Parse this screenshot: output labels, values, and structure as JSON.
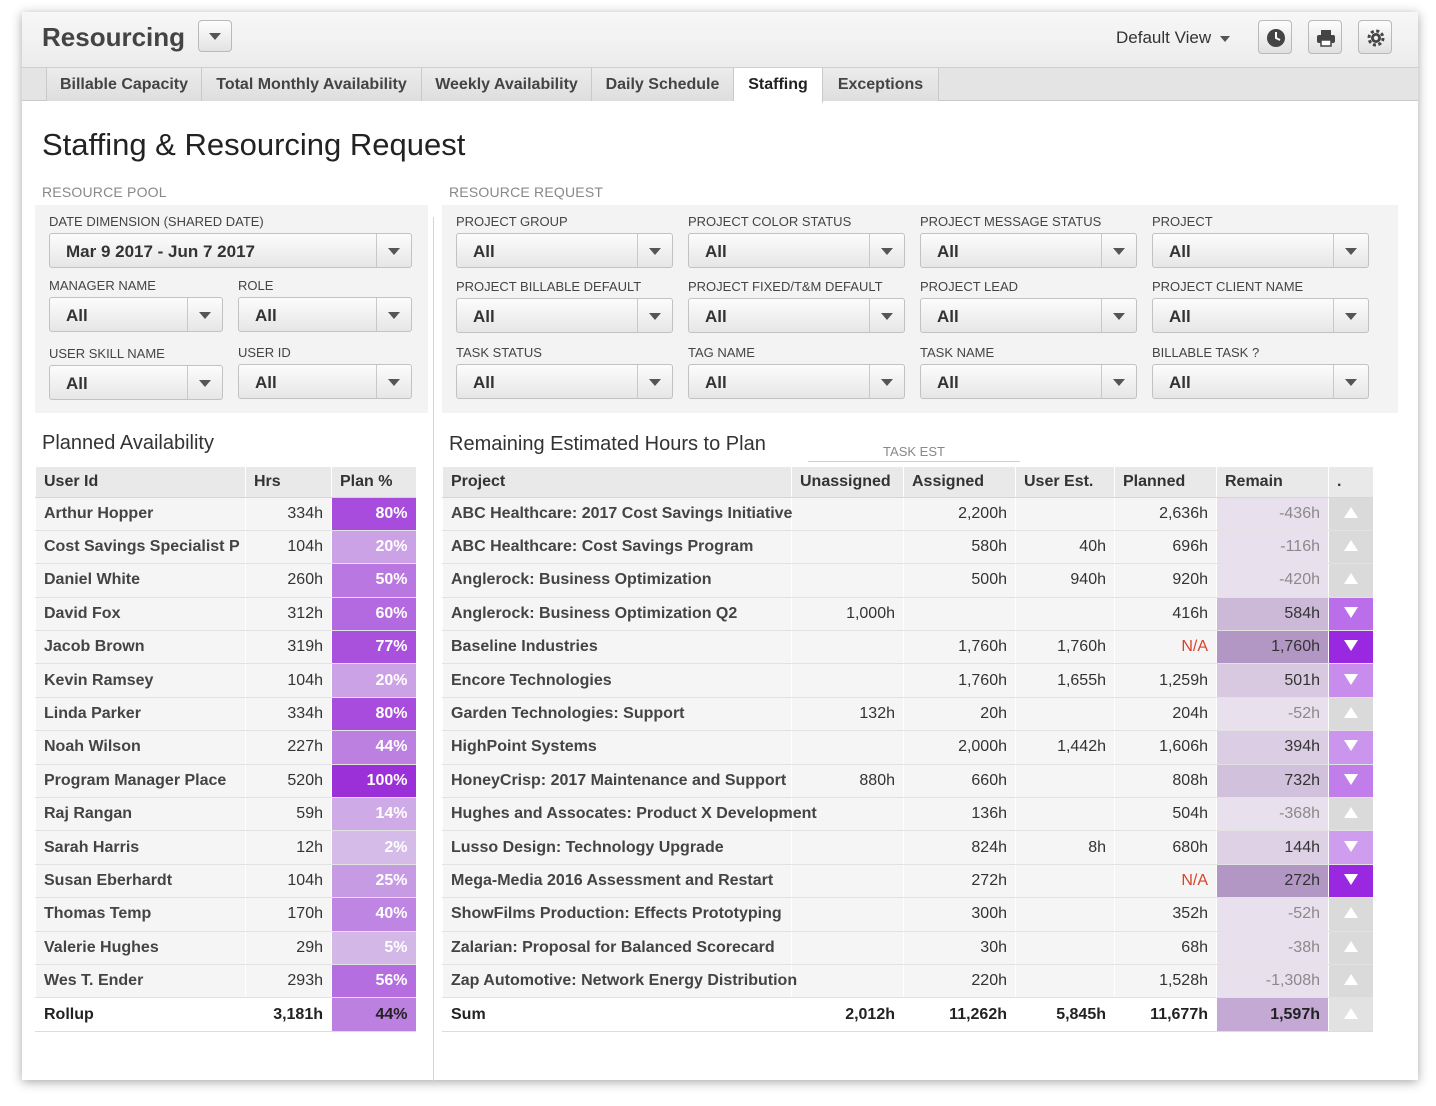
{
  "app": {
    "title": "Resourcing",
    "view": "Default View"
  },
  "tabs": [
    "Billable Capacity",
    "Total Monthly Availability",
    "Weekly Availability",
    "Daily Schedule",
    "Staffing",
    "Exceptions"
  ],
  "page_title": "Staffing & Resourcing Request",
  "resource_pool": {
    "label": "RESOURCE POOL",
    "filters": {
      "date": {
        "label": "DATE DIMENSION (SHARED DATE)",
        "value": "Mar 9 2017 - Jun 7 2017"
      },
      "manager": {
        "label": "MANAGER NAME",
        "value": "All"
      },
      "role": {
        "label": "ROLE",
        "value": "All"
      },
      "skill": {
        "label": "USER SKILL NAME",
        "value": "All"
      },
      "user_id": {
        "label": "USER ID",
        "value": "All"
      }
    }
  },
  "resource_request": {
    "label": "RESOURCE REQUEST",
    "filters": [
      {
        "label": "PROJECT GROUP",
        "value": "All"
      },
      {
        "label": "PROJECT COLOR STATUS",
        "value": "All"
      },
      {
        "label": "PROJECT MESSAGE STATUS",
        "value": "All"
      },
      {
        "label": "PROJECT",
        "value": "All"
      },
      {
        "label": "PROJECT BILLABLE DEFAULT",
        "value": "All"
      },
      {
        "label": "PROJECT FIXED/T&M DEFAULT",
        "value": "All"
      },
      {
        "label": "PROJECT LEAD",
        "value": "All"
      },
      {
        "label": "PROJECT CLIENT NAME",
        "value": "All"
      },
      {
        "label": "TASK STATUS",
        "value": "All"
      },
      {
        "label": "TAG NAME",
        "value": "All"
      },
      {
        "label": "TASK NAME",
        "value": "All"
      },
      {
        "label": "BILLABLE TASK ?",
        "value": "All"
      }
    ]
  },
  "availability": {
    "title": "Planned Availability",
    "headers": [
      "User Id",
      "Hrs",
      "Plan %"
    ],
    "rows": [
      {
        "user": "Arthur Hopper",
        "hrs": "334h",
        "plan": "80%",
        "level": 0.8
      },
      {
        "user": "Cost Savings Specialist P",
        "hrs": "104h",
        "plan": "20%",
        "level": 0.2
      },
      {
        "user": "Daniel White",
        "hrs": "260h",
        "plan": "50%",
        "level": 0.5
      },
      {
        "user": "David Fox",
        "hrs": "312h",
        "plan": "60%",
        "level": 0.6
      },
      {
        "user": "Jacob Brown",
        "hrs": "319h",
        "plan": "77%",
        "level": 0.77
      },
      {
        "user": "Kevin Ramsey",
        "hrs": "104h",
        "plan": "20%",
        "level": 0.2
      },
      {
        "user": "Linda Parker",
        "hrs": "334h",
        "plan": "80%",
        "level": 0.8
      },
      {
        "user": "Noah Wilson",
        "hrs": "227h",
        "plan": "44%",
        "level": 0.44
      },
      {
        "user": "Program Manager Place",
        "hrs": "520h",
        "plan": "100%",
        "level": 1.0
      },
      {
        "user": "Raj Rangan",
        "hrs": "59h",
        "plan": "14%",
        "level": 0.14
      },
      {
        "user": "Sarah Harris",
        "hrs": "12h",
        "plan": "2%",
        "level": 0.02
      },
      {
        "user": "Susan Eberhardt",
        "hrs": "104h",
        "plan": "25%",
        "level": 0.25
      },
      {
        "user": "Thomas Temp",
        "hrs": "170h",
        "plan": "40%",
        "level": 0.4
      },
      {
        "user": "Valerie Hughes",
        "hrs": "29h",
        "plan": "5%",
        "level": 0.05
      },
      {
        "user": "Wes T. Ender",
        "hrs": "293h",
        "plan": "56%",
        "level": 0.56
      }
    ],
    "total": {
      "user": "Rollup",
      "hrs": "3,181h",
      "plan": "44%",
      "level": 0.44
    }
  },
  "remaining": {
    "title": "Remaining Estimated Hours to Plan",
    "group_label": "TASK EST",
    "headers": [
      "Project",
      "Unassigned",
      "Assigned",
      "User Est.",
      "Planned",
      "Remain",
      "."
    ],
    "rows": [
      {
        "project": "ABC Healthcare: 2017 Cost Savings Initiative",
        "unassigned": "",
        "assigned": "2,200h",
        "user_est": "",
        "planned": "2,636h",
        "remain": "-436h",
        "dir": "up",
        "level": 0.05
      },
      {
        "project": "ABC Healthcare: Cost Savings Program",
        "unassigned": "",
        "assigned": "580h",
        "user_est": "40h",
        "planned": "696h",
        "remain": "-116h",
        "dir": "up",
        "level": 0.05
      },
      {
        "project": "Anglerock: Business Optimization",
        "unassigned": "",
        "assigned": "500h",
        "user_est": "940h",
        "planned": "920h",
        "remain": "-420h",
        "dir": "up",
        "level": 0.05
      },
      {
        "project": "Anglerock: Business Optimization Q2",
        "unassigned": "1,000h",
        "assigned": "",
        "user_est": "",
        "planned": "416h",
        "remain": "584h",
        "dir": "down",
        "level": 0.55
      },
      {
        "project": "Baseline Industries",
        "unassigned": "",
        "assigned": "1,760h",
        "user_est": "1,760h",
        "planned": "N/A",
        "remain": "1,760h",
        "dir": "down",
        "level": 1.0
      },
      {
        "project": "Encore Technologies",
        "unassigned": "",
        "assigned": "1,760h",
        "user_est": "1,655h",
        "planned": "1,259h",
        "remain": "501h",
        "dir": "down",
        "level": 0.35
      },
      {
        "project": "Garden Technologies: Support",
        "unassigned": "132h",
        "assigned": "20h",
        "user_est": "",
        "planned": "204h",
        "remain": "-52h",
        "dir": "up",
        "level": 0.05
      },
      {
        "project": "HighPoint Systems",
        "unassigned": "",
        "assigned": "2,000h",
        "user_est": "1,442h",
        "planned": "1,606h",
        "remain": "394h",
        "dir": "down",
        "level": 0.3
      },
      {
        "project": "HoneyCrisp: 2017 Maintenance and Support",
        "unassigned": "880h",
        "assigned": "660h",
        "user_est": "",
        "planned": "808h",
        "remain": "732h",
        "dir": "down",
        "level": 0.45
      },
      {
        "project": "Hughes and Assocates: Product X Development",
        "unassigned": "",
        "assigned": "136h",
        "user_est": "",
        "planned": "504h",
        "remain": "-368h",
        "dir": "up",
        "level": 0.05
      },
      {
        "project": "Lusso Design: Technology Upgrade",
        "unassigned": "",
        "assigned": "824h",
        "user_est": "8h",
        "planned": "680h",
        "remain": "144h",
        "dir": "down",
        "level": 0.25
      },
      {
        "project": "Mega-Media 2016 Assessment and Restart",
        "unassigned": "",
        "assigned": "272h",
        "user_est": "",
        "planned": "N/A",
        "remain": "272h",
        "dir": "down",
        "level": 1.0
      },
      {
        "project": "ShowFilms Production: Effects Prototyping",
        "unassigned": "",
        "assigned": "300h",
        "user_est": "",
        "planned": "352h",
        "remain": "-52h",
        "dir": "up",
        "level": 0.05
      },
      {
        "project": "Zalarian: Proposal for Balanced Scorecard",
        "unassigned": "",
        "assigned": "30h",
        "user_est": "",
        "planned": "68h",
        "remain": "-38h",
        "dir": "up",
        "level": 0.05
      },
      {
        "project": "Zap Automotive: Network Energy Distribution",
        "unassigned": "",
        "assigned": "220h",
        "user_est": "",
        "planned": "1,528h",
        "remain": "-1,308h",
        "dir": "up",
        "level": 0.05
      }
    ],
    "total": {
      "project": "Sum",
      "unassigned": "2,012h",
      "assigned": "11,262h",
      "user_est": "5,845h",
      "planned": "11,677h",
      "remain": "1,597h",
      "dir": "up"
    }
  },
  "colors": {
    "accent": "#9b30d9",
    "na": "#d9442a"
  }
}
